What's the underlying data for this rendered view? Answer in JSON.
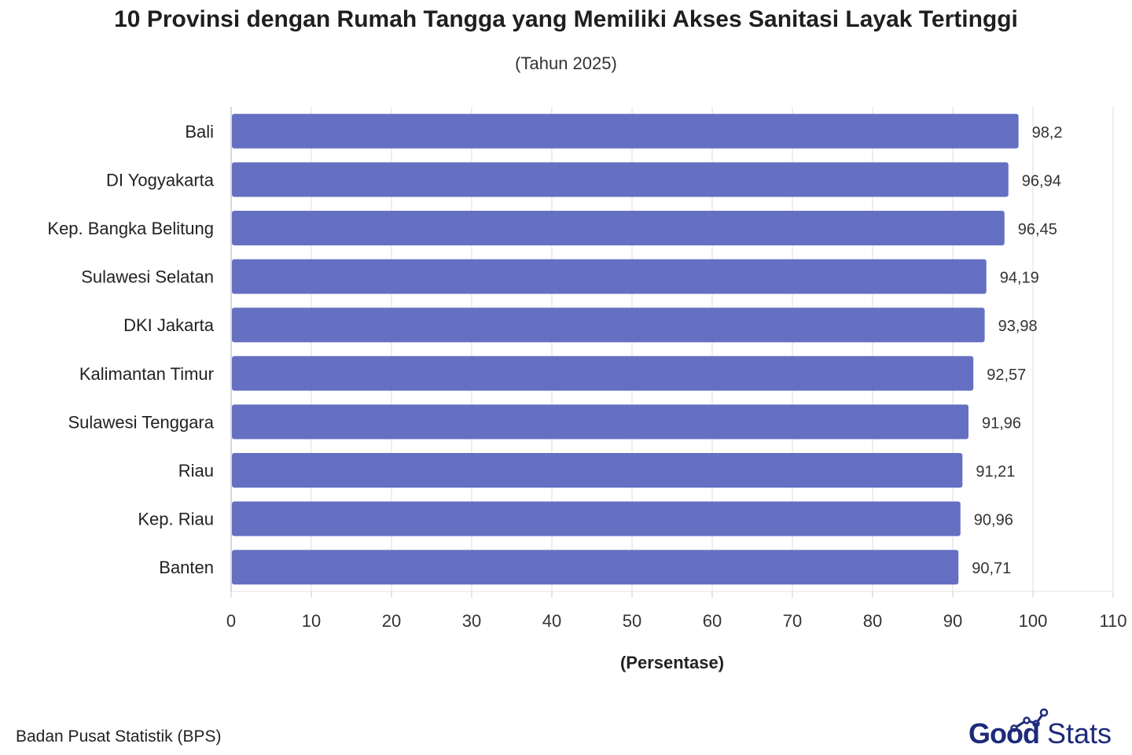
{
  "header": {
    "title": "10 Provinsi dengan Rumah Tangga yang Memiliki Akses Sanitasi Layak Tertinggi",
    "subtitle": "(Tahun 2025)"
  },
  "footer": {
    "source": "Badan Pusat Statistik (BPS)",
    "brand_good": "Good",
    "brand_stats": "Stats"
  },
  "colors": {
    "bar": "#6570c2",
    "grid": "#dddddd",
    "brand": "#1e2a7a"
  },
  "chart_data": {
    "type": "bar",
    "orientation": "horizontal",
    "title": "10 Provinsi dengan Rumah Tangga yang Memiliki Akses Sanitasi Layak Tertinggi",
    "subtitle": "(Tahun 2025)",
    "xlabel": "(Persentase)",
    "ylabel": "",
    "categories": [
      "Bali",
      "DI Yogyakarta",
      "Kep. Bangka Belitung",
      "Sulawesi Selatan",
      "DKI Jakarta",
      "Kalimantan Timur",
      "Sulawesi Tenggara",
      "Riau",
      "Kep. Riau",
      "Banten"
    ],
    "values": [
      98.2,
      96.94,
      96.45,
      94.19,
      93.98,
      92.57,
      91.96,
      91.21,
      90.96,
      90.71
    ],
    "value_labels": [
      "98,2",
      "96,94",
      "96,45",
      "94,19",
      "93,98",
      "92,57",
      "91,96",
      "91,21",
      "90,96",
      "90,71"
    ],
    "xlim": [
      0,
      110
    ],
    "xticks": [
      0,
      10,
      20,
      30,
      40,
      50,
      60,
      70,
      80,
      90,
      100,
      110
    ],
    "grid": "vertical",
    "legend": "none"
  }
}
